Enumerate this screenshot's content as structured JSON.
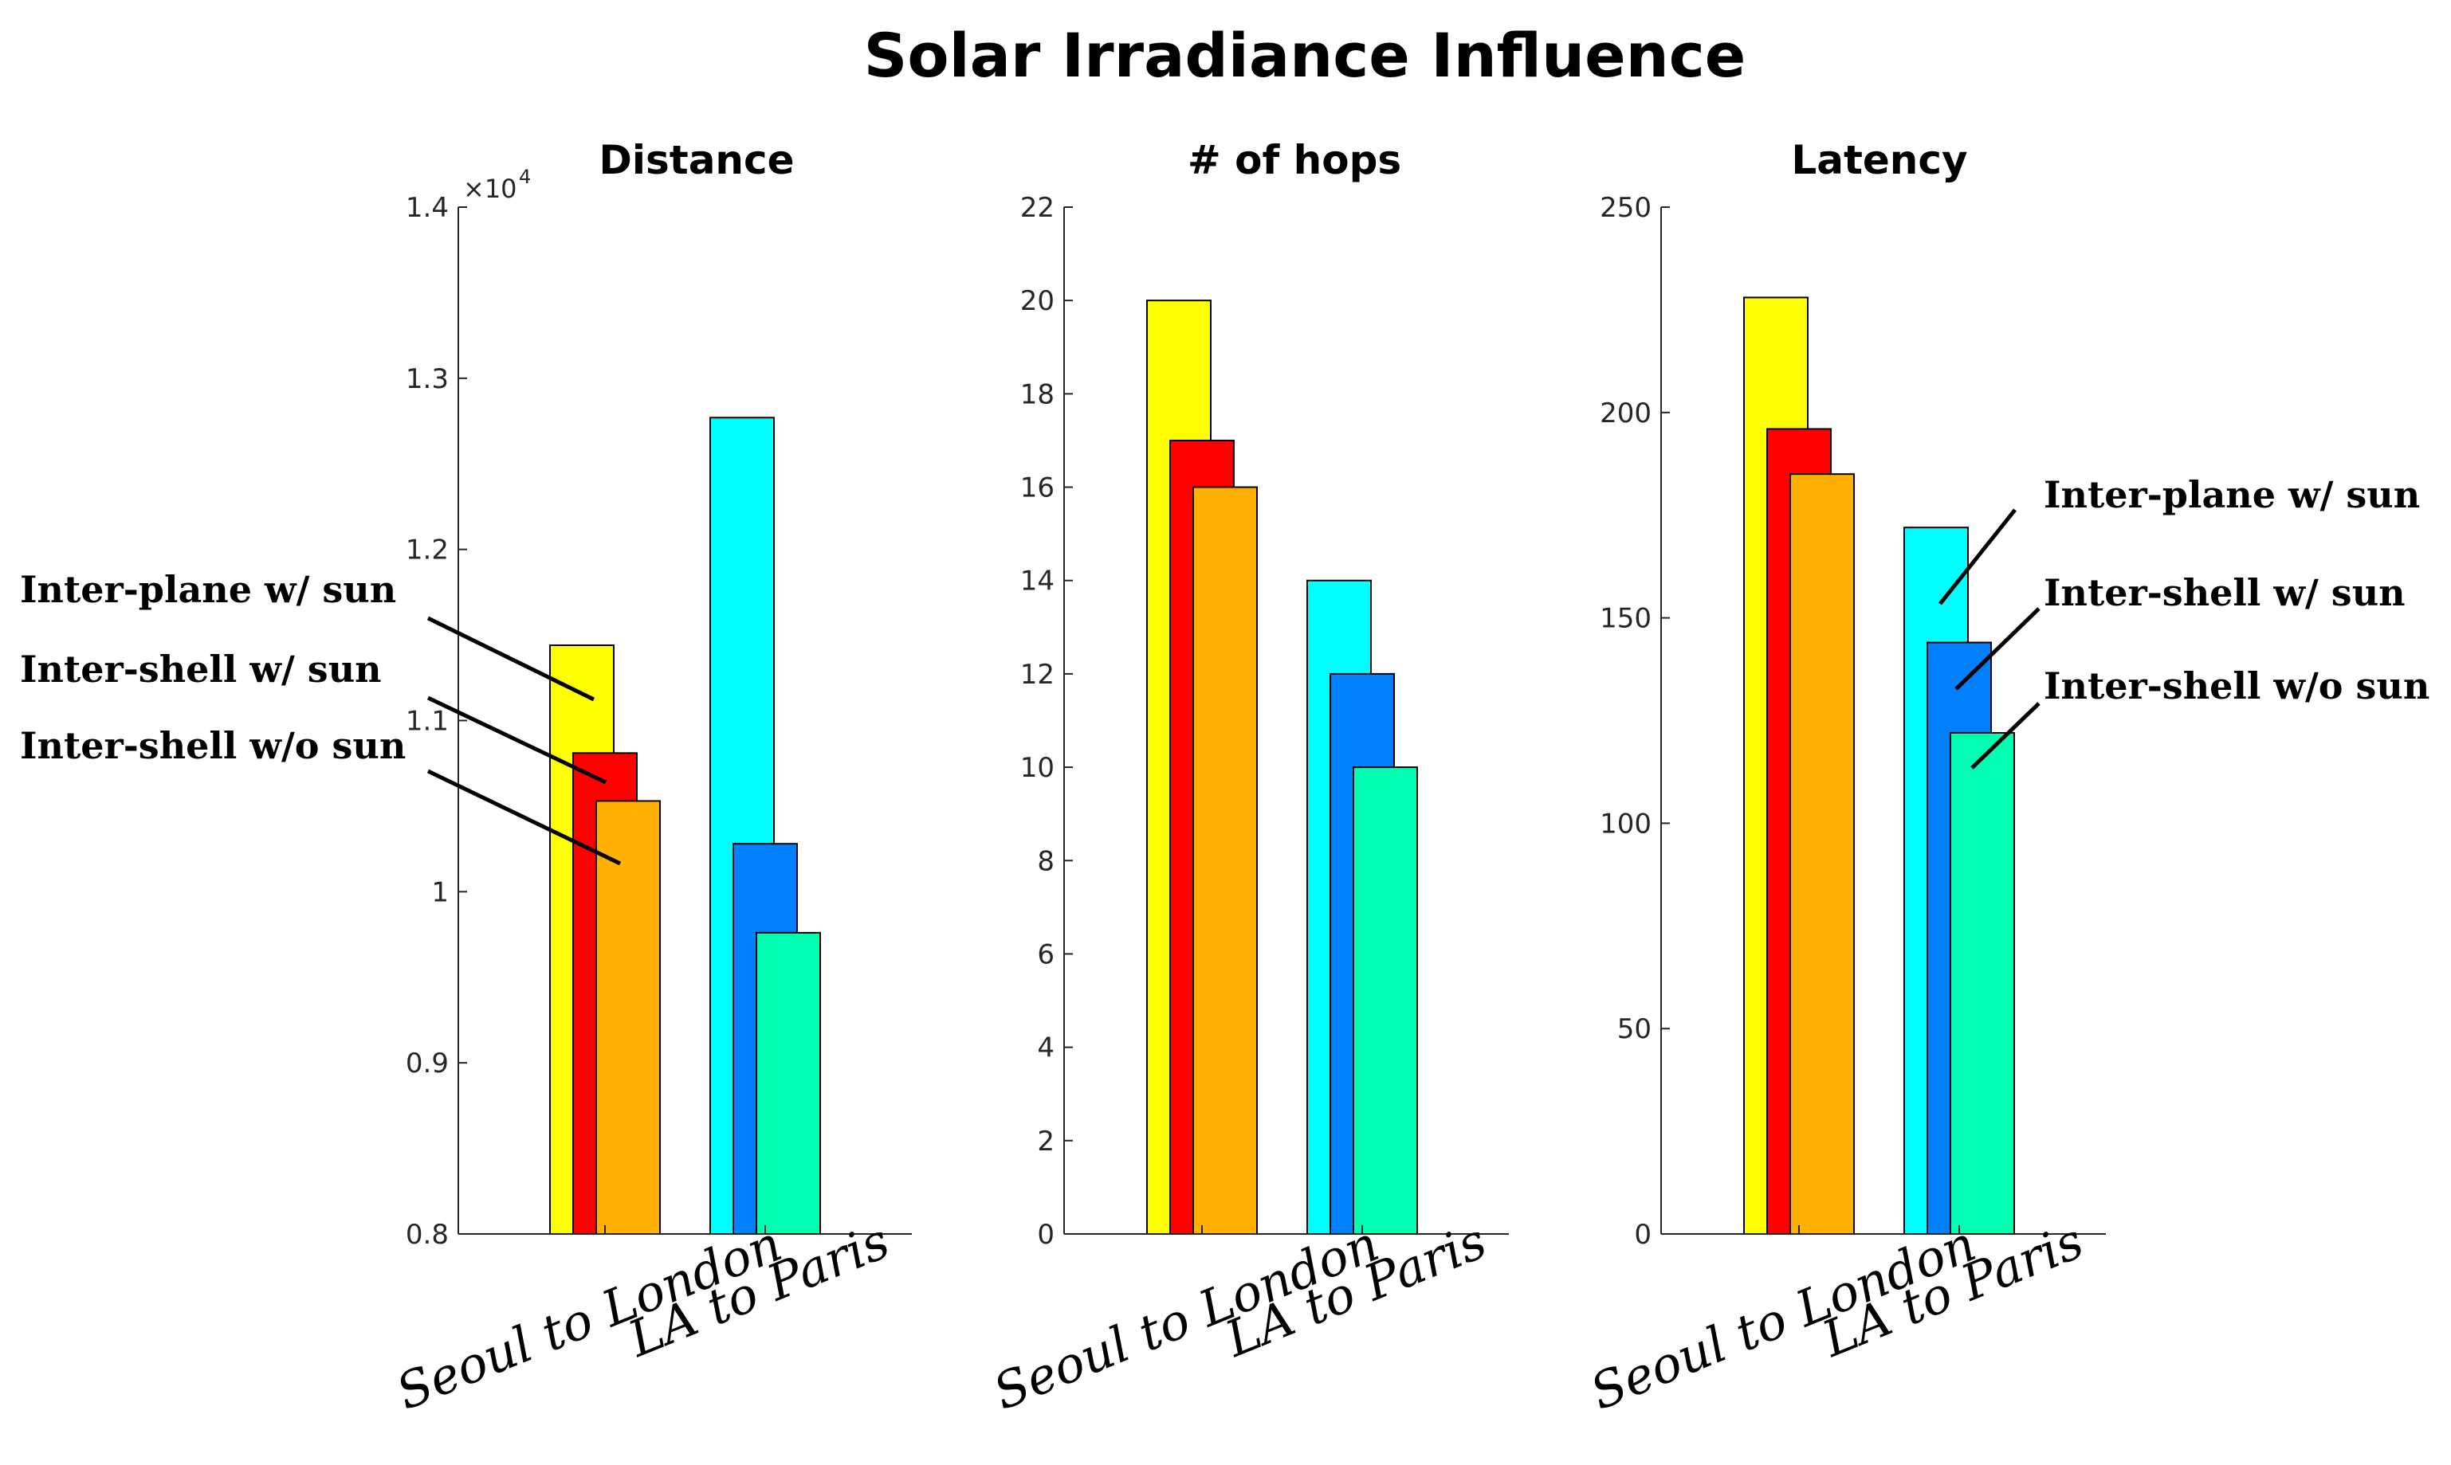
{
  "chart_data": {
    "title": "Solar Irradiance Influence",
    "series_names": [
      "Inter-plane w/   sun",
      "Inter-shell  w/   sun",
      "Inter-shell  w/o sun"
    ],
    "categories": [
      "Seoul to London",
      "LA to Paris"
    ],
    "panels": [
      {
        "type": "bar",
        "title": "Distance",
        "ylim": [
          0.8,
          1.4
        ],
        "exponent_label": "×10",
        "exponent_power": "4",
        "yticks": [
          0.8,
          0.9,
          1,
          1.1,
          1.2,
          1.3,
          1.4
        ],
        "ytick_labels": [
          "0.8",
          "0.9",
          "1",
          "1.1",
          "1.2",
          "1.3",
          "1.4"
        ],
        "series": [
          {
            "name": "Inter-plane w/ sun",
            "values": [
              1.144,
              1.277
            ],
            "colors": [
              "#ffff00",
              "#00ffff"
            ]
          },
          {
            "name": "Inter-shell w/ sun",
            "values": [
              1.081,
              1.028
            ],
            "colors": [
              "#ff0000",
              "#0080ff"
            ]
          },
          {
            "name": "Inter-shell w/o sun",
            "values": [
              1.053,
              0.976
            ],
            "colors": [
              "#ffb000",
              "#00ffb0"
            ]
          }
        ]
      },
      {
        "type": "bar",
        "title": "# of hops",
        "ylim": [
          0,
          22
        ],
        "yticks": [
          0,
          2,
          4,
          6,
          8,
          10,
          12,
          14,
          16,
          18,
          20,
          22
        ],
        "ytick_labels": [
          "0",
          "2",
          "4",
          "6",
          "8",
          "10",
          "12",
          "14",
          "16",
          "18",
          "20",
          "22"
        ],
        "series": [
          {
            "name": "Inter-plane w/ sun",
            "values": [
              20,
              14
            ],
            "colors": [
              "#ffff00",
              "#00ffff"
            ]
          },
          {
            "name": "Inter-shell w/ sun",
            "values": [
              17,
              12
            ],
            "colors": [
              "#ff0000",
              "#0080ff"
            ]
          },
          {
            "name": "Inter-shell w/o sun",
            "values": [
              16,
              10
            ],
            "colors": [
              "#ffb000",
              "#00ffb0"
            ]
          }
        ]
      },
      {
        "type": "bar",
        "title": "Latency",
        "ylim": [
          0,
          250
        ],
        "yticks": [
          0,
          50,
          100,
          150,
          200,
          250
        ],
        "ytick_labels": [
          "0",
          "50",
          "100",
          "150",
          "200",
          "250"
        ],
        "series": [
          {
            "name": "Inter-plane w/ sun",
            "values": [
              228,
              172
            ],
            "colors": [
              "#ffff00",
              "#00ffff"
            ]
          },
          {
            "name": "Inter-shell w/ sun",
            "values": [
              196,
              144
            ],
            "colors": [
              "#ff0000",
              "#0080ff"
            ]
          },
          {
            "name": "Inter-shell w/o sun",
            "values": [
              185,
              122
            ],
            "colors": [
              "#ffb000",
              "#00ffb0"
            ]
          }
        ]
      }
    ]
  }
}
